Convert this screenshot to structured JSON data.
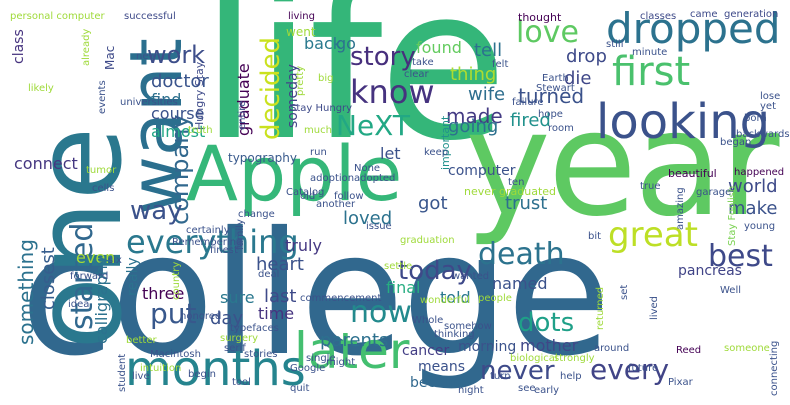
{
  "words": [
    {
      "text": "life",
      "color": "#34b679"
    },
    {
      "text": "college",
      "color": "#31688e"
    },
    {
      "text": "year",
      "color": "#5ec962"
    },
    {
      "text": "one",
      "color": "#2a788e"
    },
    {
      "text": "Apple",
      "color": "#35b779"
    },
    {
      "text": "want",
      "color": "#2b6f8e"
    },
    {
      "text": "months",
      "color": "#25848e"
    },
    {
      "text": "later",
      "color": "#44bf70"
    },
    {
      "text": "looking",
      "color": "#3b528b"
    },
    {
      "text": "dropped",
      "color": "#2c728e"
    },
    {
      "text": "first",
      "color": "#4ac16d"
    },
    {
      "text": "everything",
      "color": "#2a788e"
    },
    {
      "text": "great",
      "color": "#bddf26"
    },
    {
      "text": "death",
      "color": "#2c738e"
    },
    {
      "text": "best",
      "color": "#3e4989"
    },
    {
      "text": "know",
      "color": "#46337f"
    },
    {
      "text": "love",
      "color": "#5ec962"
    },
    {
      "text": "story",
      "color": "#472f7d"
    },
    {
      "text": "NeXT",
      "color": "#22a884"
    },
    {
      "text": "decided",
      "color": "#cae11f"
    },
    {
      "text": "company",
      "color": "#31688e"
    },
    {
      "text": "work",
      "color": "#3d4e8a"
    },
    {
      "text": "way",
      "color": "#3b528b"
    },
    {
      "text": "started",
      "color": "#31688e"
    },
    {
      "text": "something",
      "color": "#2c728e"
    },
    {
      "text": "put",
      "color": "#38588c"
    },
    {
      "text": "now",
      "color": "#238a8d"
    },
    {
      "text": "today",
      "color": "#3e4989"
    },
    {
      "text": "every",
      "color": "#414487"
    },
    {
      "text": "never",
      "color": "#3e4a89"
    },
    {
      "text": "dots",
      "color": "#1fa088"
    },
    {
      "text": "found",
      "color": "#63cb5f"
    },
    {
      "text": "graduate",
      "color": "#440154"
    },
    {
      "text": "thing",
      "color": "#addc30"
    },
    {
      "text": "tell",
      "color": "#2c728e"
    },
    {
      "text": "drop",
      "color": "#3e4a89"
    },
    {
      "text": "die",
      "color": "#3f4788"
    },
    {
      "text": "turned",
      "color": "#3b528b"
    },
    {
      "text": "fired",
      "color": "#21918c"
    },
    {
      "text": "made",
      "color": "#443b84"
    },
    {
      "text": "wife",
      "color": "#2e6e8e"
    },
    {
      "text": "going",
      "color": "#2d708e"
    },
    {
      "text": "doctor",
      "color": "#3a548c"
    },
    {
      "text": "find",
      "color": "#2d708e"
    },
    {
      "text": "course",
      "color": "#3b528b"
    },
    {
      "text": "almost",
      "color": "#21a685"
    },
    {
      "text": "back",
      "color": "#29798e"
    },
    {
      "text": "go",
      "color": "#2c728e"
    },
    {
      "text": "someday",
      "color": "#414487"
    },
    {
      "text": "connect",
      "color": "#453781"
    },
    {
      "text": "let",
      "color": "#3b528b"
    },
    {
      "text": "really",
      "color": "#2c728e"
    },
    {
      "text": "truly",
      "color": "#453882"
    },
    {
      "text": "loved",
      "color": "#2c728e"
    },
    {
      "text": "got",
      "color": "#39568c"
    },
    {
      "text": "trust",
      "color": "#2d708e"
    },
    {
      "text": "world",
      "color": "#3e4a89"
    },
    {
      "text": "make",
      "color": "#3b528b"
    },
    {
      "text": "heart",
      "color": "#3b528b"
    },
    {
      "text": "even",
      "color": "#a8db34"
    },
    {
      "text": "named",
      "color": "#3b528b"
    },
    {
      "text": "told",
      "color": "#2a788e"
    },
    {
      "text": "last",
      "color": "#3e4a89"
    },
    {
      "text": "time",
      "color": "#46337f"
    },
    {
      "text": "day",
      "color": "#3b528b"
    },
    {
      "text": "final",
      "color": "#27ad81"
    },
    {
      "text": "parents",
      "color": "#2d708e"
    },
    {
      "text": "closest",
      "color": "#365d8d"
    },
    {
      "text": "calligraphy",
      "color": "#2c728e"
    },
    {
      "text": "three",
      "color": "#440154"
    },
    {
      "text": "sure",
      "color": "#2a788e"
    },
    {
      "text": "mother",
      "color": "#3f4788"
    },
    {
      "text": "pancreas",
      "color": "#414487"
    },
    {
      "text": "morning",
      "color": "#3b528b"
    },
    {
      "text": "cancer",
      "color": "#433e85"
    },
    {
      "text": "means",
      "color": "#3b528b"
    },
    {
      "text": "become",
      "color": "#31688e"
    },
    {
      "text": "typography",
      "color": "#38598c"
    },
    {
      "text": "computer",
      "color": "#3b528b"
    },
    {
      "text": "class",
      "color": "#46337f"
    },
    {
      "text": "Mac",
      "color": "#3e4a89"
    },
    {
      "text": "Hungry Stay",
      "color": "#3e4a89"
    },
    {
      "text": "Stay Hungry",
      "color": "#3e4a89"
    },
    {
      "text": "Stay Foolish",
      "color": "#7ad151"
    },
    {
      "text": "never graduated",
      "color": "#9fda3a"
    },
    {
      "text": "personal computer",
      "color": "#9fda3a"
    },
    {
      "text": "successful",
      "color": "#3e4a89"
    },
    {
      "text": "living",
      "color": "#440154"
    },
    {
      "text": "thought",
      "color": "#440154"
    },
    {
      "text": "classes",
      "color": "#3e4a89"
    },
    {
      "text": "came",
      "color": "#3e4a89"
    },
    {
      "text": "generation",
      "color": "#3e4a89"
    },
    {
      "text": "Earth",
      "color": "#3b528b"
    },
    {
      "text": "Stewart",
      "color": "#3b528b"
    },
    {
      "text": "beautiful",
      "color": "#440154"
    },
    {
      "text": "Pixar",
      "color": "#3b528b"
    },
    {
      "text": "Reed",
      "color": "#440154"
    },
    {
      "text": "Google",
      "color": "#3b528b"
    },
    {
      "text": "Macintosh",
      "color": "#3b528b"
    },
    {
      "text": "Catalog",
      "color": "#3b528b"
    },
    {
      "text": "went",
      "color": "#9fda3a"
    },
    {
      "text": "important",
      "color": "#21918c"
    },
    {
      "text": "already",
      "color": "#9fda3a"
    },
    {
      "text": "pretty",
      "color": "#9fda3a"
    },
    {
      "text": "entire",
      "color": "#3b528b"
    },
    {
      "text": "country",
      "color": "#9fda3a"
    },
    {
      "text": "felt",
      "color": "#3b528b"
    },
    {
      "text": "hope",
      "color": "#3b528b"
    },
    {
      "text": "minute",
      "color": "#3b528b"
    },
    {
      "text": "still",
      "color": "#3b528b"
    },
    {
      "text": "failure",
      "color": "#3b528b"
    },
    {
      "text": "room",
      "color": "#3b528b"
    },
    {
      "text": "ten",
      "color": "#3b528b"
    },
    {
      "text": "happened",
      "color": "#440154"
    },
    {
      "text": "true",
      "color": "#3b528b"
    },
    {
      "text": "born",
      "color": "#3b528b"
    },
    {
      "text": "garage",
      "color": "#3b528b"
    },
    {
      "text": "lose",
      "color": "#3b528b"
    },
    {
      "text": "yet",
      "color": "#3b528b"
    },
    {
      "text": "amazing",
      "color": "#3b528b"
    },
    {
      "text": "young",
      "color": "#3b528b"
    },
    {
      "text": "backwards",
      "color": "#3b528b"
    },
    {
      "text": "wonderful",
      "color": "#9fda3a"
    },
    {
      "text": "Well",
      "color": "#3b528b"
    },
    {
      "text": "serif",
      "color": "#3b528b"
    },
    {
      "text": "typefaces",
      "color": "#3b528b"
    },
    {
      "text": "surgery",
      "color": "#9fda3a"
    },
    {
      "text": "stories",
      "color": "#3b528b"
    },
    {
      "text": "single",
      "color": "#3b528b"
    },
    {
      "text": "Whole",
      "color": "#3b528b"
    },
    {
      "text": "somehow",
      "color": "#3b528b"
    },
    {
      "text": "thinking",
      "color": "#3b528b"
    },
    {
      "text": "biological",
      "color": "#9fda3a"
    },
    {
      "text": "strongly",
      "color": "#9fda3a"
    },
    {
      "text": "around",
      "color": "#3b528b"
    },
    {
      "text": "someone",
      "color": "#9fda3a"
    },
    {
      "text": "connecting",
      "color": "#3b528b"
    },
    {
      "text": "help",
      "color": "#3b528b"
    },
    {
      "text": "future",
      "color": "#3b528b"
    },
    {
      "text": "night",
      "color": "#3b528b"
    },
    {
      "text": "see",
      "color": "#3b528b"
    },
    {
      "text": "early",
      "color": "#3b528b"
    },
    {
      "text": "turn",
      "color": "#3b528b"
    },
    {
      "text": "quit",
      "color": "#3b528b"
    },
    {
      "text": "might",
      "color": "#3b528b"
    },
    {
      "text": "begin",
      "color": "#3b528b"
    },
    {
      "text": "tool",
      "color": "#3b528b"
    },
    {
      "text": "live",
      "color": "#3b528b"
    },
    {
      "text": "intuition",
      "color": "#9fda3a"
    },
    {
      "text": "better",
      "color": "#9fda3a"
    },
    {
      "text": "idea",
      "color": "#3b528b"
    },
    {
      "text": "student",
      "color": "#3b528b"
    },
    {
      "text": "six",
      "color": "#3b528b"
    },
    {
      "text": "honored",
      "color": "#3b528b"
    },
    {
      "text": "forward",
      "color": "#3b528b"
    },
    {
      "text": "family",
      "color": "#3b528b"
    },
    {
      "text": "Remembering",
      "color": "#3b528b"
    },
    {
      "text": "finest",
      "color": "#3b528b"
    },
    {
      "text": "certainly",
      "color": "#3b528b"
    },
    {
      "text": "change",
      "color": "#3b528b"
    },
    {
      "text": "tumor",
      "color": "#9fda3a"
    },
    {
      "text": "cells",
      "color": "#3b528b"
    },
    {
      "text": "adoption",
      "color": "#3b528b"
    },
    {
      "text": "old",
      "color": "#3b528b"
    },
    {
      "text": "adopted",
      "color": "#3b528b"
    },
    {
      "text": "follow",
      "color": "#3b528b"
    },
    {
      "text": "another",
      "color": "#3b528b"
    },
    {
      "text": "keep",
      "color": "#3b528b"
    },
    {
      "text": "None",
      "color": "#3b528b"
    },
    {
      "text": "deal",
      "color": "#3b528b"
    },
    {
      "text": "settle",
      "color": "#9fda3a"
    },
    {
      "text": "issue",
      "color": "#3b528b"
    },
    {
      "text": "people",
      "color": "#9fda3a"
    },
    {
      "text": "wanted",
      "color": "#3b528b"
    },
    {
      "text": "returned",
      "color": "#9fda3a"
    },
    {
      "text": "set",
      "color": "#3b528b"
    },
    {
      "text": "lived",
      "color": "#3b528b"
    },
    {
      "text": "universities",
      "color": "#3b528b"
    },
    {
      "text": "likely",
      "color": "#9fda3a"
    },
    {
      "text": "events",
      "color": "#3b528b"
    },
    {
      "text": "truth",
      "color": "#9fda3a"
    },
    {
      "text": "big",
      "color": "#9fda3a"
    },
    {
      "text": "much",
      "color": "#9fda3a"
    },
    {
      "text": "run",
      "color": "#3b528b"
    },
    {
      "text": "take",
      "color": "#3b528b"
    },
    {
      "text": "clear",
      "color": "#3b528b"
    },
    {
      "text": "new",
      "color": "#3b528b"
    },
    {
      "text": "began",
      "color": "#3b528b"
    },
    {
      "text": "bit",
      "color": "#3b528b"
    },
    {
      "text": "graduation",
      "color": "#9fda3a"
    },
    {
      "text": "commencement",
      "color": "#3b528b"
    }
  ]
}
